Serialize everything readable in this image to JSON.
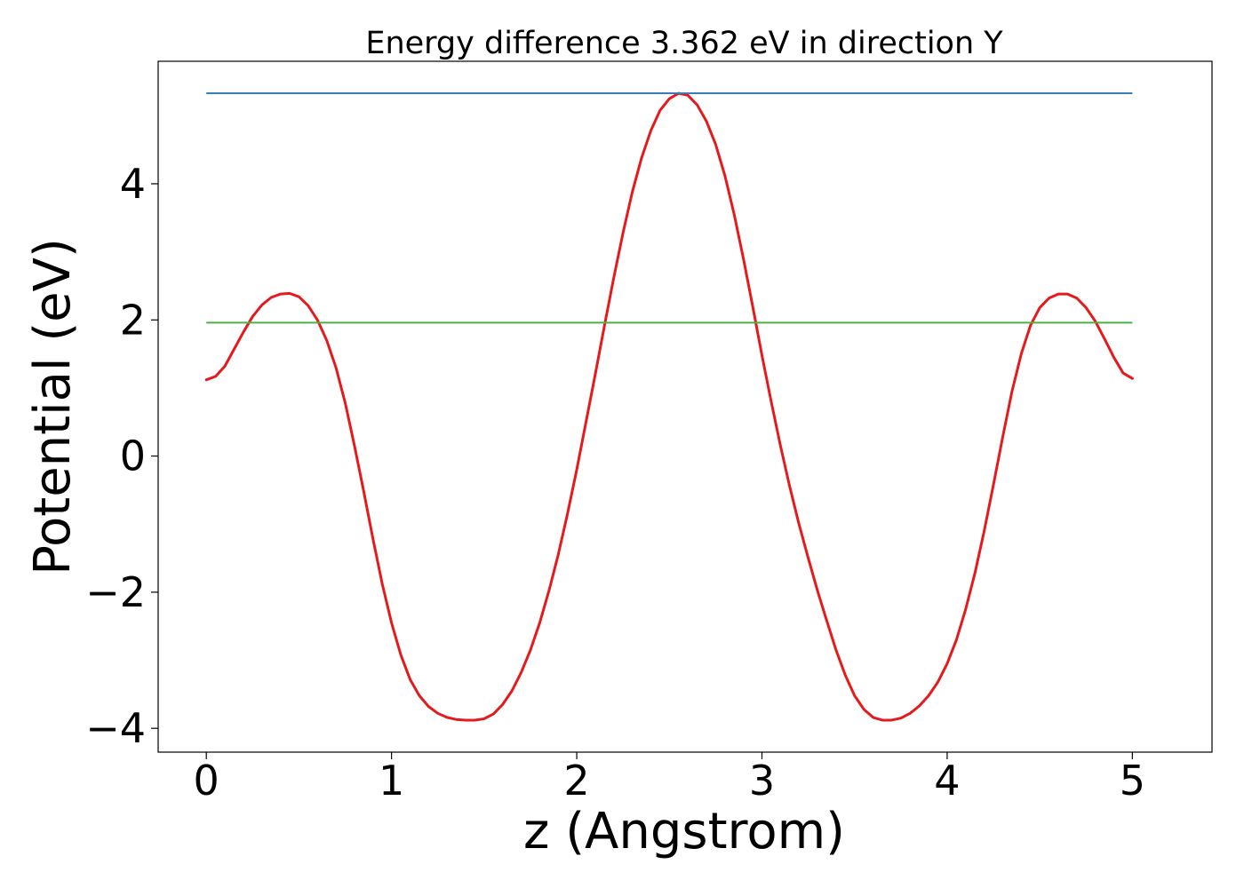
{
  "chart_data": {
    "type": "line",
    "title": "Energy difference 3.362 eV in direction Y",
    "xlabel": "z (Angstrom)",
    "ylabel": "Potential (eV)",
    "xlim": [
      -0.26,
      5.43
    ],
    "ylim": [
      -4.35,
      5.8
    ],
    "xticks": [
      0,
      1,
      2,
      3,
      4,
      5
    ],
    "xtick_labels": [
      "0",
      "1",
      "2",
      "3",
      "4",
      "5"
    ],
    "yticks": [
      -4,
      -2,
      0,
      2,
      4
    ],
    "ytick_labels": [
      "−4",
      "−2",
      "0",
      "2",
      "4"
    ],
    "grid": false,
    "series": [
      {
        "kind": "curve",
        "color": "#e41a1c",
        "points": [
          [
            0.0,
            1.12
          ],
          [
            0.05,
            1.17
          ],
          [
            0.1,
            1.32
          ],
          [
            0.15,
            1.57
          ],
          [
            0.2,
            1.82
          ],
          [
            0.25,
            2.05
          ],
          [
            0.3,
            2.22
          ],
          [
            0.35,
            2.33
          ],
          [
            0.4,
            2.38
          ],
          [
            0.45,
            2.39
          ],
          [
            0.5,
            2.34
          ],
          [
            0.55,
            2.21
          ],
          [
            0.6,
            2.0
          ],
          [
            0.65,
            1.7
          ],
          [
            0.7,
            1.3
          ],
          [
            0.75,
            0.78
          ],
          [
            0.8,
            0.15
          ],
          [
            0.85,
            -0.52
          ],
          [
            0.9,
            -1.22
          ],
          [
            0.95,
            -1.88
          ],
          [
            1.0,
            -2.45
          ],
          [
            1.05,
            -2.92
          ],
          [
            1.1,
            -3.28
          ],
          [
            1.15,
            -3.52
          ],
          [
            1.2,
            -3.68
          ],
          [
            1.25,
            -3.78
          ],
          [
            1.3,
            -3.84
          ],
          [
            1.35,
            -3.87
          ],
          [
            1.4,
            -3.88
          ],
          [
            1.45,
            -3.88
          ],
          [
            1.5,
            -3.86
          ],
          [
            1.55,
            -3.79
          ],
          [
            1.6,
            -3.65
          ],
          [
            1.65,
            -3.45
          ],
          [
            1.7,
            -3.18
          ],
          [
            1.75,
            -2.85
          ],
          [
            1.8,
            -2.45
          ],
          [
            1.85,
            -1.98
          ],
          [
            1.9,
            -1.45
          ],
          [
            1.95,
            -0.85
          ],
          [
            2.0,
            -0.2
          ],
          [
            2.05,
            0.5
          ],
          [
            2.1,
            1.2
          ],
          [
            2.15,
            1.92
          ],
          [
            2.2,
            2.62
          ],
          [
            2.25,
            3.28
          ],
          [
            2.3,
            3.88
          ],
          [
            2.35,
            4.38
          ],
          [
            2.4,
            4.78
          ],
          [
            2.45,
            5.08
          ],
          [
            2.5,
            5.25
          ],
          [
            2.55,
            5.33
          ],
          [
            2.6,
            5.3
          ],
          [
            2.65,
            5.16
          ],
          [
            2.7,
            4.92
          ],
          [
            2.75,
            4.58
          ],
          [
            2.8,
            4.12
          ],
          [
            2.85,
            3.55
          ],
          [
            2.9,
            2.9
          ],
          [
            2.95,
            2.2
          ],
          [
            3.0,
            1.48
          ],
          [
            3.05,
            0.8
          ],
          [
            3.1,
            0.15
          ],
          [
            3.15,
            -0.45
          ],
          [
            3.2,
            -1.0
          ],
          [
            3.25,
            -1.5
          ],
          [
            3.3,
            -1.98
          ],
          [
            3.35,
            -2.42
          ],
          [
            3.4,
            -2.85
          ],
          [
            3.45,
            -3.22
          ],
          [
            3.5,
            -3.52
          ],
          [
            3.55,
            -3.72
          ],
          [
            3.6,
            -3.84
          ],
          [
            3.65,
            -3.88
          ],
          [
            3.7,
            -3.88
          ],
          [
            3.75,
            -3.85
          ],
          [
            3.8,
            -3.78
          ],
          [
            3.85,
            -3.67
          ],
          [
            3.9,
            -3.52
          ],
          [
            3.95,
            -3.32
          ],
          [
            4.0,
            -3.05
          ],
          [
            4.05,
            -2.7
          ],
          [
            4.1,
            -2.25
          ],
          [
            4.15,
            -1.72
          ],
          [
            4.2,
            -1.1
          ],
          [
            4.25,
            -0.42
          ],
          [
            4.3,
            0.28
          ],
          [
            4.35,
            0.95
          ],
          [
            4.4,
            1.5
          ],
          [
            4.45,
            1.92
          ],
          [
            4.5,
            2.18
          ],
          [
            4.55,
            2.32
          ],
          [
            4.6,
            2.38
          ],
          [
            4.65,
            2.38
          ],
          [
            4.7,
            2.32
          ],
          [
            4.75,
            2.18
          ],
          [
            4.8,
            1.98
          ],
          [
            4.85,
            1.72
          ],
          [
            4.9,
            1.45
          ],
          [
            4.95,
            1.22
          ],
          [
            5.0,
            1.14
          ]
        ]
      },
      {
        "kind": "hline",
        "color": "#377eb8",
        "y": 5.33,
        "x": [
          0.0,
          5.0
        ]
      },
      {
        "kind": "hline",
        "color": "#4daf4a",
        "y": 1.96,
        "x": [
          0.0,
          5.0
        ]
      }
    ]
  }
}
